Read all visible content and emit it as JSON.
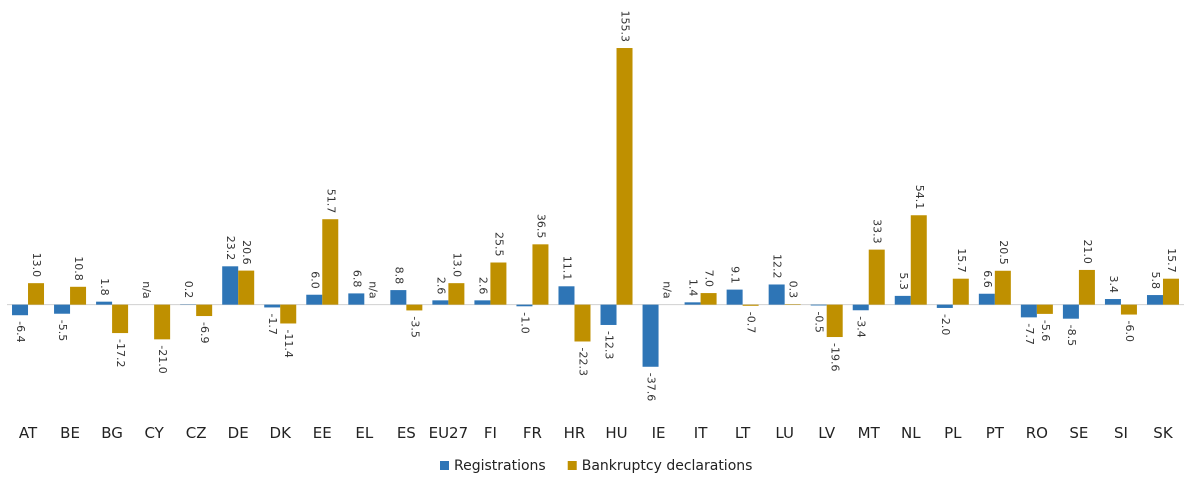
{
  "chart_data": {
    "type": "bar",
    "categories": [
      "AT",
      "BE",
      "BG",
      "CY",
      "CZ",
      "DE",
      "DK",
      "EE",
      "EL",
      "ES",
      "EU27",
      "FI",
      "FR",
      "HR",
      "HU",
      "IE",
      "IT",
      "LT",
      "LU",
      "LV",
      "MT",
      "NL",
      "PL",
      "PT",
      "RO",
      "SE",
      "SI",
      "SK"
    ],
    "series": [
      {
        "name": "Registrations",
        "color": "#2e75b6",
        "values": [
          -6.4,
          -5.5,
          1.8,
          null,
          0.2,
          23.2,
          -1.7,
          6.0,
          6.8,
          8.8,
          2.6,
          2.6,
          -1.0,
          11.1,
          -12.3,
          -37.6,
          1.4,
          9.1,
          12.2,
          -0.5,
          -3.4,
          5.3,
          -2.0,
          6.6,
          -7.7,
          -8.5,
          3.4,
          5.8
        ],
        "value_labels": [
          "-6.4",
          "-5.5",
          "1.8",
          "n/a",
          "0.2",
          "23.2",
          "-1.7",
          "6.0",
          "6.8",
          "8.8",
          "2.6",
          "2.6",
          "-1.0",
          "11.1",
          "-12.3",
          "-37.6",
          "1.4",
          "9.1",
          "12.2",
          "-0.5",
          "-3.4",
          "5.3",
          "-2.0",
          "6.6",
          "-7.7",
          "-8.5",
          "3.4",
          "5.8"
        ]
      },
      {
        "name": "Bankruptcy declarations",
        "color": "#bf9000",
        "values": [
          13.0,
          10.8,
          -17.2,
          -21.0,
          -6.9,
          20.6,
          -11.4,
          51.7,
          null,
          -3.5,
          13.0,
          25.5,
          36.5,
          -22.3,
          155.3,
          null,
          7.0,
          -0.7,
          0.3,
          -19.6,
          33.3,
          54.1,
          15.7,
          20.5,
          -5.6,
          21.0,
          -6.0,
          15.7
        ],
        "value_labels": [
          "13.0",
          "10.8",
          "-17.2",
          "-21.0",
          "-6.9",
          "20.6",
          "-11.4",
          "51.7",
          "n/a",
          "-3.5",
          "13.0",
          "25.5",
          "36.5",
          "-22.3",
          "155.3",
          "n/a",
          "7.0",
          "-0.7",
          "0.3",
          "-19.6",
          "33.3",
          "54.1",
          "15.7",
          "20.5",
          "-5.6",
          "21.0",
          "-6.0",
          "15.7"
        ]
      }
    ],
    "ylim": [
      -45,
      165
    ]
  }
}
